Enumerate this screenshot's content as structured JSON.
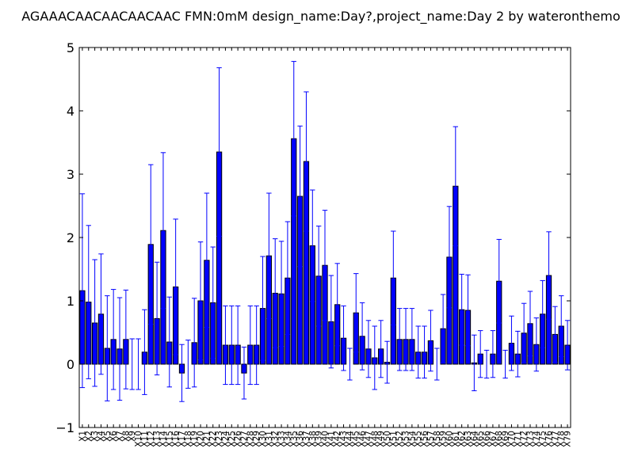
{
  "chart_data": {
    "type": "bar",
    "title": "AGAAACAACAACAACAAC  FMN:0mM  design_name:Day?,project_name:Day 2 by wateronthemo",
    "xlabel": "",
    "ylabel": "",
    "ylim": [
      -1,
      5
    ],
    "yticks": [
      -1,
      0,
      1,
      2,
      3,
      4,
      5
    ],
    "grid": false,
    "colors": {
      "bar": "#0000ff",
      "bar_edge": "#000000",
      "error_bar": "#0000ff",
      "axes": "#000000"
    },
    "categories": [
      "X1",
      "X2",
      "X3",
      "X4",
      "X5",
      "X6",
      "X7",
      "X8",
      "X9",
      "X10",
      "X11",
      "X12",
      "X13",
      "X14",
      "X15",
      "X16",
      "X17",
      "X18",
      "X19",
      "X20",
      "X21",
      "X22",
      "X23",
      "X24",
      "X25",
      "X26",
      "X27",
      "X28",
      "X29",
      "X30",
      "X31",
      "X32",
      "X33",
      "X34",
      "X35",
      "X36",
      "X37",
      "X38",
      "X39",
      "X40",
      "X41",
      "X42",
      "X43",
      "X44",
      "X45",
      "X46",
      "X47",
      "X48",
      "X49",
      "X50",
      "X51",
      "X52",
      "X53",
      "X54",
      "X55",
      "X56",
      "X57",
      "X58",
      "X59",
      "X60",
      "X61",
      "X62",
      "X63",
      "X64",
      "X65",
      "X66",
      "X67",
      "X68",
      "X69",
      "X70",
      "X71",
      "X72",
      "X73",
      "X74",
      "X75",
      "X76",
      "X77",
      "X78",
      "X79"
    ],
    "values": [
      1.16,
      0.98,
      0.65,
      0.79,
      0.25,
      0.39,
      0.24,
      0.39,
      0.0,
      0.0,
      0.19,
      1.89,
      0.72,
      2.11,
      0.35,
      1.22,
      -0.14,
      0.0,
      0.34,
      1.0,
      1.64,
      0.97,
      3.35,
      0.3,
      0.3,
      0.3,
      -0.14,
      0.3,
      0.3,
      0.88,
      1.71,
      1.12,
      1.11,
      1.36,
      3.56,
      2.65,
      3.2,
      1.87,
      1.39,
      1.56,
      0.67,
      0.94,
      0.41,
      0.0,
      0.81,
      0.44,
      0.24,
      0.1,
      0.24,
      0.03,
      1.36,
      0.39,
      0.39,
      0.39,
      0.19,
      0.19,
      0.37,
      0.0,
      0.56,
      1.69,
      2.81,
      0.86,
      0.85,
      0.02,
      0.16,
      0.0,
      0.16,
      1.31,
      0.0,
      0.33,
      0.16,
      0.49,
      0.64,
      0.31,
      0.79,
      1.4,
      0.47,
      0.6,
      0.3
    ],
    "errors": [
      1.53,
      1.21,
      1.0,
      0.95,
      0.83,
      0.79,
      0.81,
      0.78,
      0.4,
      0.4,
      0.67,
      1.26,
      0.89,
      1.23,
      0.71,
      1.07,
      0.45,
      0.38,
      0.7,
      0.93,
      1.06,
      0.88,
      1.33,
      0.62,
      0.62,
      0.62,
      0.41,
      0.62,
      0.62,
      0.82,
      0.99,
      0.86,
      0.83,
      0.89,
      1.22,
      1.11,
      1.1,
      0.88,
      0.79,
      0.87,
      0.73,
      0.65,
      0.51,
      0.25,
      0.62,
      0.53,
      0.45,
      0.5,
      0.45,
      0.33,
      0.74,
      0.49,
      0.49,
      0.49,
      0.41,
      0.41,
      0.48,
      0.25,
      0.54,
      0.8,
      0.94,
      0.56,
      0.56,
      0.44,
      0.37,
      0.22,
      0.37,
      0.66,
      0.22,
      0.43,
      0.36,
      0.47,
      0.51,
      0.42,
      0.53,
      0.69,
      0.44,
      0.48,
      0.39
    ]
  }
}
